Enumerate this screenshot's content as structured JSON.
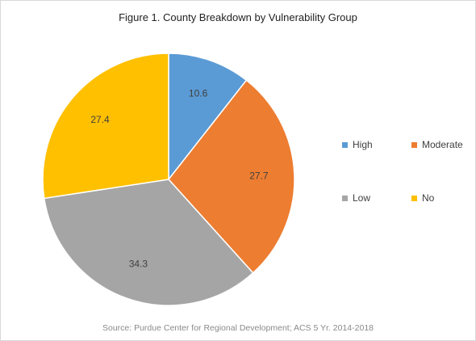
{
  "chart_data": {
    "type": "pie",
    "title": "Figure 1. County Breakdown by Vulnerability Group",
    "source": "Source: Purdue Center for Regional Development; ACS 5 Yr. 2014-2018",
    "categories": [
      "High",
      "Moderate",
      "Low",
      "No"
    ],
    "values": [
      10.6,
      27.7,
      34.3,
      27.4
    ],
    "value_labels": [
      "10.6",
      "27.7",
      "34.3",
      "27.4"
    ],
    "colors": [
      "#5b9bd5",
      "#ed7d31",
      "#a5a5a5",
      "#ffc000"
    ],
    "start_angle": "12 o'clock",
    "direction": "clockwise",
    "legend_position": "right"
  }
}
